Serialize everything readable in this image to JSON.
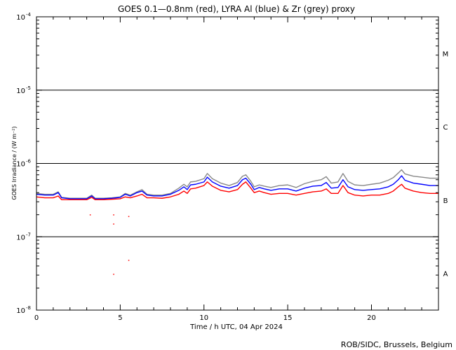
{
  "chart_data": {
    "type": "line",
    "title": "GOES 0.1—0.8nm (red), LYRA Al (blue) & Zr (grey) proxy",
    "xlabel": "Time / h UTC, 04 Apr 2024",
    "ylabel": "GOES Irradiance / (W m⁻²)",
    "credit": "ROB/SIDC, Brussels, Belgium",
    "xlim": [
      0,
      24
    ],
    "ylim": [
      1e-08,
      0.0001
    ],
    "yscale": "log",
    "x_ticks": [
      0,
      5,
      10,
      15,
      20
    ],
    "x_tick_labels": [
      "0",
      "5",
      "10",
      "15",
      "20"
    ],
    "y_ticks": [
      {
        "base": "10",
        "exp": "-8",
        "value": 1e-08
      },
      {
        "base": "10",
        "exp": "-7",
        "value": 1e-07
      },
      {
        "base": "10",
        "exp": "-6",
        "value": 1e-06
      },
      {
        "base": "10",
        "exp": "-5",
        "value": 1e-05
      },
      {
        "base": "10",
        "exp": "-4",
        "value": 0.0001
      }
    ],
    "flare_class_lines": [
      1e-07,
      1e-06,
      1e-05
    ],
    "flare_classes": [
      {
        "label": "A",
        "value": 3.16e-08
      },
      {
        "label": "B",
        "value": 3.16e-07
      },
      {
        "label": "C",
        "value": 3.16e-06
      },
      {
        "label": "M",
        "value": 3.16e-05
      }
    ],
    "series": [
      {
        "name": "GOES 0.1-0.8nm",
        "color": "#ff0000",
        "x": [
          0,
          0.5,
          1.0,
          1.3,
          1.5,
          2.0,
          3.0,
          3.3,
          3.5,
          4.0,
          4.5,
          5.0,
          5.3,
          5.6,
          6.0,
          6.3,
          6.6,
          7.0,
          7.5,
          8.0,
          8.5,
          8.8,
          9.0,
          9.2,
          9.5,
          10.0,
          10.2,
          10.5,
          11.0,
          11.5,
          12.0,
          12.3,
          12.5,
          12.8,
          13.0,
          13.3,
          13.6,
          14.0,
          14.5,
          15.0,
          15.5,
          16.0,
          16.5,
          17.0,
          17.3,
          17.6,
          18.0,
          18.3,
          18.6,
          19.0,
          19.5,
          20.0,
          20.5,
          21.0,
          21.3,
          21.6,
          21.8,
          22.0,
          22.5,
          23.0,
          23.5,
          24.0
        ],
        "y": [
          3.5e-07,
          3.4e-07,
          3.4e-07,
          3.6e-07,
          3.2e-07,
          3.2e-07,
          3.2e-07,
          3.45e-07,
          3.2e-07,
          3.2e-07,
          3.25e-07,
          3.3e-07,
          3.5e-07,
          3.4e-07,
          3.6e-07,
          3.8e-07,
          3.4e-07,
          3.4e-07,
          3.35e-07,
          3.5e-07,
          3.8e-07,
          4.2e-07,
          3.9e-07,
          4.5e-07,
          4.6e-07,
          5e-07,
          5.6e-07,
          4.9e-07,
          4.3e-07,
          4.1e-07,
          4.4e-07,
          5.2e-07,
          5.6e-07,
          4.6e-07,
          4e-07,
          4.2e-07,
          4e-07,
          3.8e-07,
          3.9e-07,
          3.9e-07,
          3.7e-07,
          3.9e-07,
          4.1e-07,
          4.2e-07,
          4.5e-07,
          3.9e-07,
          3.9e-07,
          5e-07,
          4e-07,
          3.7e-07,
          3.6e-07,
          3.7e-07,
          3.7e-07,
          3.9e-07,
          4.2e-07,
          4.8e-07,
          5.2e-07,
          4.6e-07,
          4.2e-07,
          4e-07,
          3.9e-07,
          3.9e-07
        ]
      },
      {
        "name": "LYRA Al proxy",
        "color": "#0000ff",
        "x": [
          0,
          0.5,
          1.0,
          1.3,
          1.5,
          2.0,
          3.0,
          3.3,
          3.5,
          4.0,
          4.5,
          5.0,
          5.3,
          5.6,
          6.0,
          6.3,
          6.6,
          7.0,
          7.5,
          8.0,
          8.5,
          8.8,
          9.0,
          9.2,
          9.5,
          10.0,
          10.2,
          10.5,
          11.0,
          11.5,
          12.0,
          12.3,
          12.5,
          12.8,
          13.0,
          13.3,
          13.6,
          14.0,
          14.5,
          15.0,
          15.5,
          16.0,
          16.5,
          17.0,
          17.3,
          17.6,
          18.0,
          18.3,
          18.6,
          19.0,
          19.5,
          20.0,
          20.5,
          21.0,
          21.3,
          21.6,
          21.8,
          22.0,
          22.5,
          23.0,
          23.5,
          24.0
        ],
        "y": [
          3.8e-07,
          3.7e-07,
          3.7e-07,
          4e-07,
          3.4e-07,
          3.3e-07,
          3.3e-07,
          3.6e-07,
          3.3e-07,
          3.3e-07,
          3.35e-07,
          3.45e-07,
          3.8e-07,
          3.6e-07,
          4e-07,
          4.2e-07,
          3.7e-07,
          3.6e-07,
          3.6e-07,
          3.8e-07,
          4.3e-07,
          4.8e-07,
          4.4e-07,
          5.1e-07,
          5.2e-07,
          5.6e-07,
          6.5e-07,
          5.6e-07,
          4.9e-07,
          4.6e-07,
          5e-07,
          6e-07,
          6.3e-07,
          5.2e-07,
          4.4e-07,
          4.7e-07,
          4.5e-07,
          4.3e-07,
          4.5e-07,
          4.5e-07,
          4.2e-07,
          4.6e-07,
          4.9e-07,
          5e-07,
          5.5e-07,
          4.6e-07,
          4.7e-07,
          6e-07,
          4.8e-07,
          4.4e-07,
          4.3e-07,
          4.4e-07,
          4.5e-07,
          4.8e-07,
          5.2e-07,
          6e-07,
          6.8e-07,
          5.9e-07,
          5.4e-07,
          5.2e-07,
          5e-07,
          5e-07
        ]
      },
      {
        "name": "LYRA Zr proxy",
        "color": "#888888",
        "x": [
          0,
          0.5,
          1.0,
          1.3,
          1.5,
          2.0,
          3.0,
          3.3,
          3.5,
          4.0,
          4.5,
          5.0,
          5.3,
          5.6,
          6.0,
          6.3,
          6.6,
          7.0,
          7.5,
          8.0,
          8.5,
          8.8,
          9.0,
          9.2,
          9.5,
          10.0,
          10.2,
          10.5,
          11.0,
          11.5,
          12.0,
          12.3,
          12.5,
          12.8,
          13.0,
          13.3,
          13.6,
          14.0,
          14.5,
          15.0,
          15.5,
          16.0,
          16.5,
          17.0,
          17.3,
          17.6,
          18.0,
          18.3,
          18.6,
          19.0,
          19.5,
          20.0,
          20.5,
          21.0,
          21.3,
          21.6,
          21.8,
          22.0,
          22.5,
          23.0,
          23.5,
          24.0
        ],
        "y": [
          3.9e-07,
          3.8e-07,
          3.8e-07,
          4.1e-07,
          3.45e-07,
          3.35e-07,
          3.35e-07,
          3.7e-07,
          3.35e-07,
          3.35e-07,
          3.4e-07,
          3.5e-07,
          3.9e-07,
          3.7e-07,
          4.1e-07,
          4.4e-07,
          3.8e-07,
          3.7e-07,
          3.7e-07,
          3.9e-07,
          4.6e-07,
          5.2e-07,
          4.8e-07,
          5.6e-07,
          5.7e-07,
          6.2e-07,
          7.3e-07,
          6.2e-07,
          5.4e-07,
          5e-07,
          5.5e-07,
          6.7e-07,
          7e-07,
          5.7e-07,
          4.8e-07,
          5.1e-07,
          4.9e-07,
          4.7e-07,
          5e-07,
          5.1e-07,
          4.7e-07,
          5.3e-07,
          5.7e-07,
          6e-07,
          6.6e-07,
          5.4e-07,
          5.6e-07,
          7.3e-07,
          5.7e-07,
          5.1e-07,
          5e-07,
          5.2e-07,
          5.4e-07,
          5.9e-07,
          6.4e-07,
          7.4e-07,
          8.2e-07,
          7.2e-07,
          6.7e-07,
          6.5e-07,
          6.3e-07,
          6.3e-07
        ]
      }
    ],
    "outlier_points": [
      {
        "x": 3.2,
        "y": 2e-07
      },
      {
        "x": 4.6,
        "y": 1.5e-07
      },
      {
        "x": 4.6,
        "y": 2e-07
      },
      {
        "x": 4.6,
        "y": 3.1e-08
      },
      {
        "x": 5.5,
        "y": 1.9e-07
      },
      {
        "x": 5.5,
        "y": 4.8e-08
      }
    ]
  }
}
